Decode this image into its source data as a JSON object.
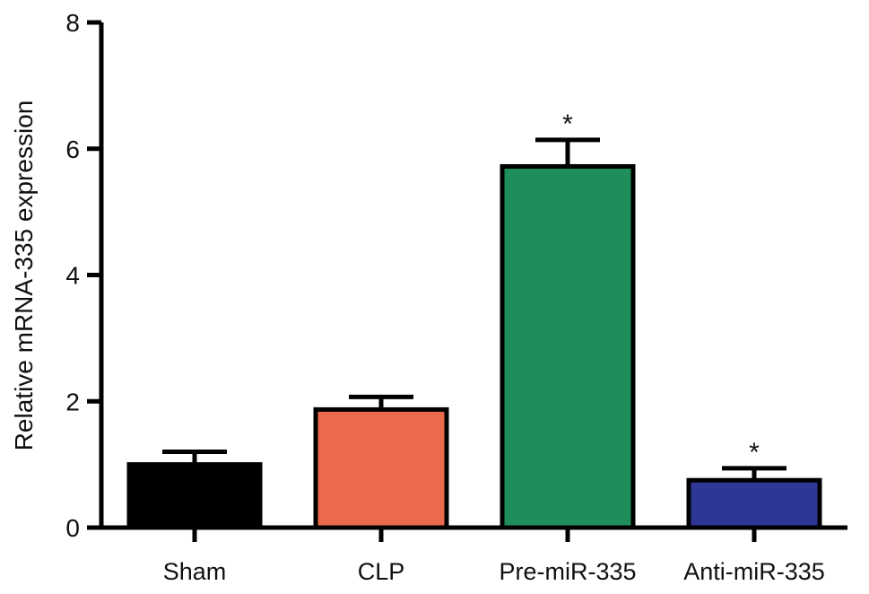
{
  "chart_data": {
    "type": "bar",
    "title": "",
    "xlabel": "",
    "ylabel": "Relative mRNA-335 expression",
    "ylim": [
      0,
      8
    ],
    "yticks": [
      0,
      2,
      4,
      6,
      8
    ],
    "grid": false,
    "legend": "none",
    "categories": [
      "Sham",
      "CLP",
      "Pre-miR-335",
      "Anti-miR-335"
    ],
    "values": [
      1.0,
      1.87,
      5.72,
      0.75
    ],
    "errors": [
      0.2,
      0.2,
      0.42,
      0.19
    ],
    "colors": [
      "#000000",
      "#ec6a4c",
      "#1f8e5a",
      "#2e3796"
    ],
    "annotations": [
      "",
      "",
      "*",
      "*"
    ]
  }
}
